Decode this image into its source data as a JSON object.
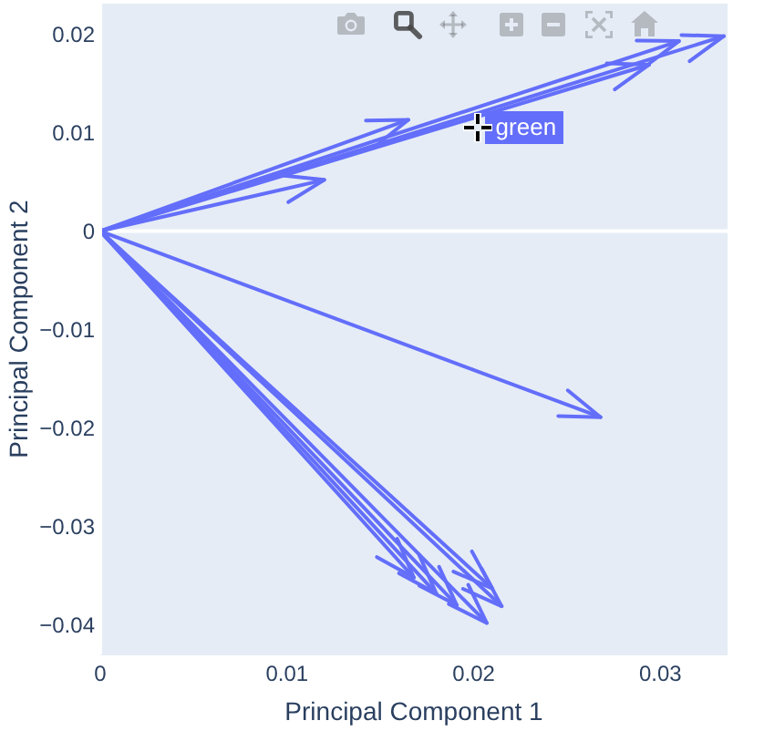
{
  "chart_data": {
    "type": "line",
    "xlabel": "Principal Component 1",
    "ylabel": "Principal Component 2",
    "xlim": [
      0,
      0.0336
    ],
    "ylim": [
      -0.043,
      0.0231
    ],
    "xticks": [
      0,
      0.01,
      0.02,
      0.03
    ],
    "yticks": [
      {
        "value": -0.04,
        "label": "−0.04"
      },
      {
        "value": -0.03,
        "label": "−0.03"
      },
      {
        "value": -0.02,
        "label": "−0.02"
      },
      {
        "value": -0.01,
        "label": "−0.01"
      },
      0,
      0.01,
      0.02
    ],
    "marker": "none",
    "line_style": "solid",
    "ref_lines": [
      {
        "axis": "y",
        "value": 0,
        "color": "#ffffff"
      }
    ],
    "annotations": [
      {
        "text": "green",
        "x": 0.0202,
        "y": 0.0106
      }
    ],
    "series": [
      {
        "color": "#636efa",
        "x": [
          0,
          0.0334
        ],
        "values": [
          0,
          0.0198
        ]
      },
      {
        "color": "#636efa",
        "x": [
          0,
          0.031
        ],
        "values": [
          0,
          0.0193
        ]
      },
      {
        "color": "#636efa",
        "x": [
          0,
          0.0294
        ],
        "values": [
          0,
          0.0169
        ]
      },
      {
        "color": "#636efa",
        "x": [
          0,
          0.0165
        ],
        "values": [
          0,
          0.0113
        ]
      },
      {
        "color": "#636efa",
        "x": [
          0,
          0.012
        ],
        "values": [
          0,
          0.0052
        ]
      },
      {
        "color": "#636efa",
        "x": [
          0,
          0.0268
        ],
        "values": [
          0,
          -0.0189
        ]
      },
      {
        "color": "#636efa",
        "x": [
          0,
          0.0168
        ],
        "values": [
          0,
          -0.0352
        ]
      },
      {
        "color": "#636efa",
        "x": [
          0,
          0.0215
        ],
        "values": [
          0,
          -0.0381
        ]
      },
      {
        "color": "#636efa",
        "x": [
          0,
          0.0207
        ],
        "values": [
          0,
          -0.0398
        ]
      },
      {
        "color": "#636efa",
        "x": [
          0,
          0.0191
        ],
        "values": [
          0,
          -0.038
        ]
      },
      {
        "color": "#636efa",
        "x": [
          0,
          0.021
        ],
        "values": [
          0,
          -0.0363
        ]
      },
      {
        "color": "#636efa",
        "x": [
          0,
          0.018
        ],
        "values": [
          0,
          -0.0368
        ]
      }
    ]
  }
}
